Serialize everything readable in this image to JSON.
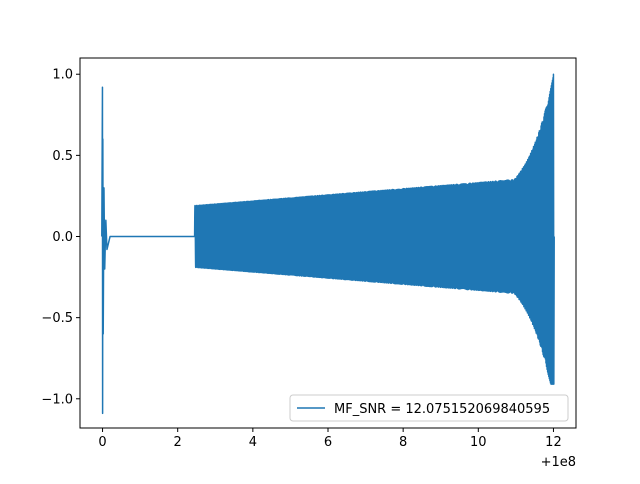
{
  "chart_data": {
    "type": "line",
    "title": "",
    "xlabel": "",
    "ylabel": "",
    "x_offset_label": "+1e8",
    "xlim": [
      -0.6,
      12.6
    ],
    "ylim": [
      -1.18,
      1.1
    ],
    "xticks": [
      0,
      2,
      4,
      6,
      8,
      10,
      12
    ],
    "xtick_labels": [
      "0",
      "2",
      "4",
      "6",
      "8",
      "10",
      "12"
    ],
    "yticks": [
      -1.0,
      -0.5,
      0.0,
      0.5,
      1.0
    ],
    "ytick_labels": [
      "−1.0",
      "−0.5",
      "0.0",
      "0.5",
      "1.0"
    ],
    "grid": false,
    "legend_position": "lower-right",
    "series_color": "#1f77b4",
    "series": [
      {
        "name": "MF_SNR = 12.075152069840595",
        "segments": [
          {
            "kind": "burst",
            "x_start": -0.02,
            "x_end": 0.2,
            "y_max": 0.92,
            "y_min": -1.09
          },
          {
            "kind": "flat",
            "x_start": 0.2,
            "x_end": 2.45,
            "y": 0.0
          },
          {
            "kind": "chirp",
            "x_start": 2.45,
            "x_end": 12.0,
            "amp_start": 0.19,
            "amp_peak": 1.0,
            "amp_peak_neg": -0.91,
            "cycles": 440
          }
        ]
      }
    ]
  }
}
